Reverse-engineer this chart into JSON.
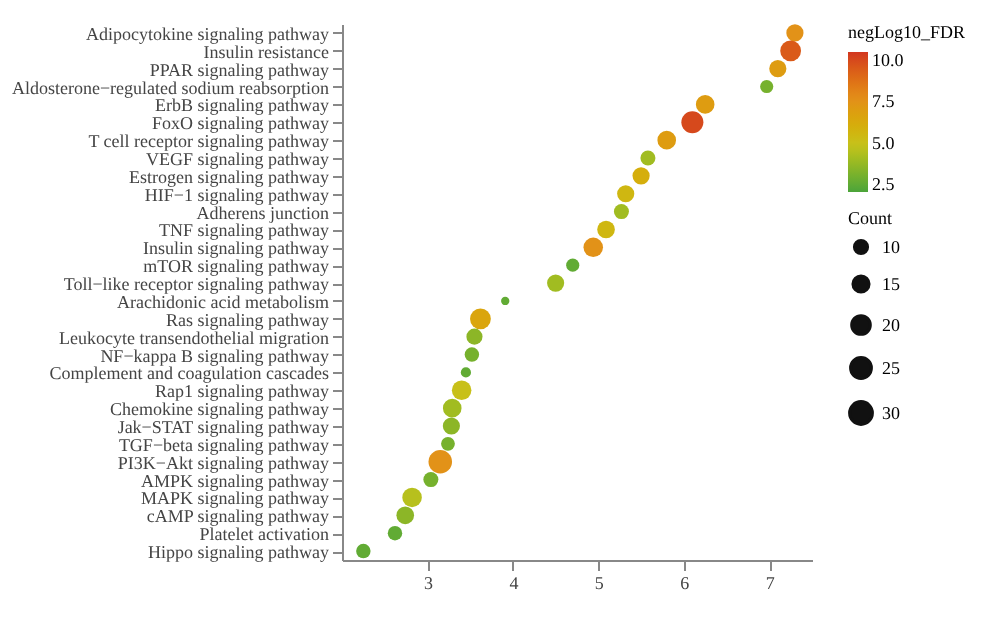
{
  "chart_data": {
    "type": "bubble",
    "orientation": "horizontal",
    "categories": [
      "Adipocytokine signaling pathway",
      "Insulin resistance",
      "PPAR signaling pathway",
      "Aldosterone−regulated sodium reabsorption",
      "ErbB signaling pathway",
      "FoxO signaling pathway",
      "T cell receptor signaling pathway",
      "VEGF signaling pathway",
      "Estrogen signaling pathway",
      "HIF−1 signaling pathway",
      "Adherens junction",
      "TNF signaling pathway",
      "Insulin signaling pathway",
      "mTOR signaling pathway",
      "Toll−like receptor signaling pathway",
      "Arachidonic acid metabolism",
      "Ras signaling pathway",
      "Leukocyte transendothelial migration",
      "NF−kappa B signaling pathway",
      "Complement and coagulation cascades",
      "Rap1 signaling pathway",
      "Chemokine signaling pathway",
      "Jak−STAT signaling pathway",
      "TGF−beta signaling pathway",
      "PI3K−Akt signaling pathway",
      "AMPK signaling pathway",
      "MAPK signaling pathway",
      "cAMP signaling pathway",
      "Platelet activation",
      "Hippo signaling pathway"
    ],
    "values": [
      7.3,
      7.25,
      7.1,
      6.97,
      6.25,
      6.1,
      5.8,
      5.58,
      5.5,
      5.32,
      5.27,
      5.09,
      4.94,
      4.7,
      4.5,
      3.91,
      3.62,
      3.55,
      3.52,
      3.45,
      3.4,
      3.29,
      3.28,
      3.24,
      3.15,
      3.04,
      2.82,
      2.74,
      2.62,
      2.25
    ],
    "sizes": [
      17,
      25,
      17,
      10,
      20,
      28,
      20,
      13,
      17,
      17,
      13,
      18,
      22,
      10,
      17,
      4,
      25,
      15,
      12,
      6,
      22,
      20,
      17,
      11,
      32,
      13,
      22,
      18,
      12,
      12
    ],
    "cvalues": [
      7.5,
      9.5,
      7,
      3,
      7,
      10,
      7,
      4,
      6,
      5.5,
      4,
      5.5,
      7.5,
      2.5,
      4,
      2.5,
      6.5,
      3.5,
      3,
      2.5,
      5,
      4,
      3.5,
      3,
      7.5,
      3,
      4.5,
      3.5,
      2.5,
      2.5
    ],
    "xlim": [
      2,
      7.5
    ],
    "xticks": [
      3,
      4,
      5,
      6,
      7
    ],
    "clabel": "negLog10_FDR",
    "clim": [
      2,
      10.5
    ],
    "cticks": [
      {
        "value": 2.5,
        "label": "2.5"
      },
      {
        "value": 5,
        "label": "5.0"
      },
      {
        "value": 7.5,
        "label": "7.5"
      },
      {
        "value": 10,
        "label": "10.0"
      }
    ],
    "legend_title": "Count",
    "size_legend": [
      10,
      15,
      20,
      25,
      30
    ],
    "grid": false
  }
}
